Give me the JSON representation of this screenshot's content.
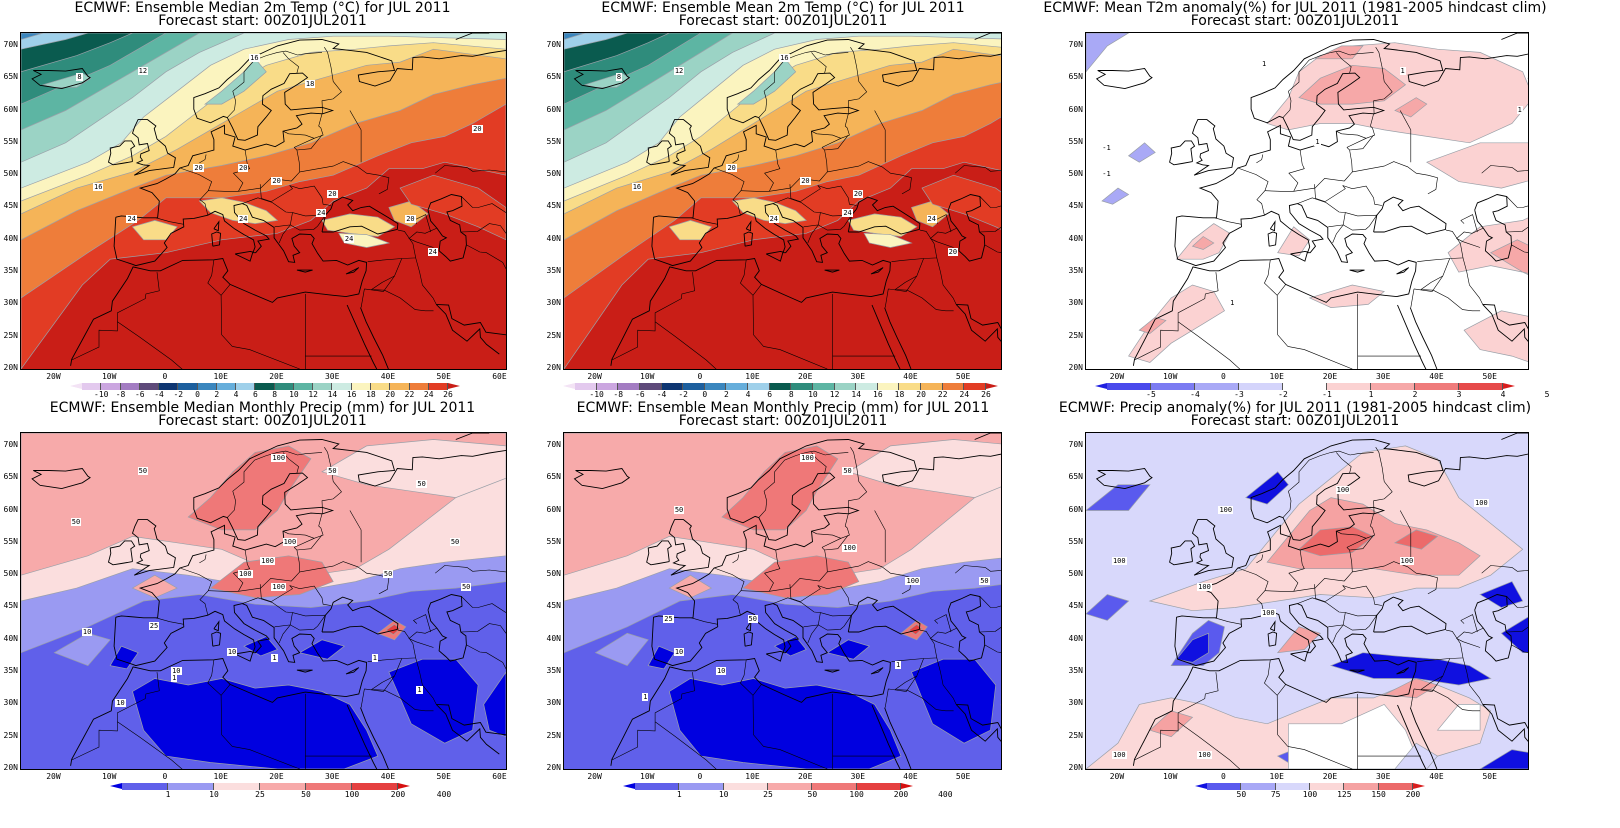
{
  "panels": [
    {
      "id": "median-temp",
      "title_line1": "ECMWF: Ensemble Median 2m Temp (°C) for JUL 2011",
      "title_line2": "Forecast start: 00Z01JUL2011",
      "lat_labels": [
        "70N",
        "65N",
        "60N",
        "55N",
        "50N",
        "45N",
        "40N",
        "35N",
        "30N",
        "25N",
        "20N"
      ],
      "lon_labels": [
        "20W",
        "10W",
        "0",
        "10E",
        "20E",
        "30E",
        "40E",
        "50E",
        "60E"
      ],
      "colorbar": {
        "ticks": [
          "-10",
          "-8",
          "-6",
          "-4",
          "-2",
          "0",
          "2",
          "4",
          "6",
          "8",
          "10",
          "12",
          "14",
          "16",
          "18",
          "20",
          "22",
          "24",
          "26"
        ],
        "colors": [
          "#f3e3f5",
          "#e3c9ee",
          "#cba6e0",
          "#a37cc2",
          "#5e4a7a",
          "#0e3672",
          "#1c5f9e",
          "#3a86be",
          "#66aedb",
          "#9fd0ea",
          "#0a5b4f",
          "#2f8c7c",
          "#5db5a3",
          "#9bd3c5",
          "#cdebe2",
          "#fbf4bf",
          "#f9dc88",
          "#f5b458",
          "#ee7d3a",
          "#e23c24",
          "#c91e17"
        ]
      },
      "contour_labels": [
        "8",
        "12",
        "16",
        "16",
        "18",
        "20",
        "20",
        "20",
        "20",
        "20",
        "24",
        "24",
        "24",
        "24",
        "24",
        "20"
      ]
    },
    {
      "id": "mean-temp",
      "title_line1": "ECMWF: Ensemble Mean 2m Temp (°C) for JUL 2011",
      "title_line2": "Forecast start: 00Z01JUL2011",
      "lat_labels": [
        "70N",
        "65N",
        "60N",
        "55N",
        "50N",
        "45N",
        "40N",
        "35N",
        "30N",
        "25N",
        "20N"
      ],
      "lon_labels": [
        "20W",
        "10W",
        "0",
        "10E",
        "20E",
        "30E",
        "40E",
        "50E"
      ],
      "colorbar": {
        "ticks": [
          "-10",
          "-8",
          "-6",
          "-4",
          "-2",
          "0",
          "2",
          "4",
          "6",
          "8",
          "10",
          "12",
          "14",
          "16",
          "18",
          "20",
          "22",
          "24",
          "26"
        ],
        "colors": [
          "#f3e3f5",
          "#e3c9ee",
          "#cba6e0",
          "#a37cc2",
          "#5e4a7a",
          "#0e3672",
          "#1c5f9e",
          "#3a86be",
          "#66aedb",
          "#9fd0ea",
          "#0a5b4f",
          "#2f8c7c",
          "#5db5a3",
          "#9bd3c5",
          "#cdebe2",
          "#fbf4bf",
          "#f9dc88",
          "#f5b458",
          "#ee7d3a",
          "#e23c24",
          "#c91e17"
        ]
      },
      "contour_labels": [
        "8",
        "12",
        "16",
        "16",
        "20",
        "20",
        "20",
        "24",
        "24",
        "24",
        "20"
      ]
    },
    {
      "id": "t2m-anomaly",
      "title_line1": "ECMWF: Mean T2m anomaly(%) for JUL 2011 (1981-2005 hindcast clim)",
      "title_line2": "Forecast start: 00Z01JUL2011",
      "lat_labels": [
        "70N",
        "65N",
        "60N",
        "55N",
        "50N",
        "45N",
        "40N",
        "35N",
        "30N",
        "25N",
        "20N"
      ],
      "lon_labels": [
        "20W",
        "10W",
        "0",
        "10E",
        "20E",
        "30E",
        "40E",
        "50E"
      ],
      "colorbar": {
        "ticks": [
          "-5",
          "-4",
          "-3",
          "-2",
          "-1",
          "1",
          "2",
          "3",
          "4",
          "5"
        ],
        "colors": [
          "#1f1fe0",
          "#4a4aec",
          "#7b7bf2",
          "#a9a9f6",
          "#d4d4fb",
          "#ffffff",
          "#fbd2d2",
          "#f6a8a8",
          "#ef7b7b",
          "#e64a4a",
          "#d91c1c"
        ]
      },
      "contour_labels": [
        "1",
        "1",
        "1",
        "1",
        "-1",
        "-1",
        "1"
      ]
    },
    {
      "id": "median-precip",
      "title_line1": "ECMWF: Ensemble Median Monthly Precip (mm) for JUL 2011",
      "title_line2": "Forecast start: 00Z01JUL2011",
      "lat_labels": [
        "70N",
        "65N",
        "60N",
        "55N",
        "50N",
        "45N",
        "40N",
        "35N",
        "30N",
        "25N",
        "20N"
      ],
      "lon_labels": [
        "20W",
        "10W",
        "0",
        "10E",
        "20E",
        "30E",
        "40E",
        "50E",
        "60E"
      ],
      "colorbar": {
        "ticks": [
          "1",
          "10",
          "25",
          "50",
          "100",
          "200",
          "400"
        ],
        "colors": [
          "#0000e0",
          "#6060ea",
          "#9a9af2",
          "#fbdede",
          "#f7aaaa",
          "#ef7878",
          "#e54040",
          "#d61010"
        ]
      },
      "contour_labels": [
        "50",
        "50",
        "100",
        "50",
        "50",
        "100",
        "100",
        "100",
        "100",
        "50",
        "50",
        "50",
        "25",
        "10",
        "10",
        "10",
        "10",
        "1",
        "1",
        "1",
        "1"
      ]
    },
    {
      "id": "mean-precip",
      "title_line1": "ECMWF: Ensemble Mean Monthly Precip (mm) for JUL 2011",
      "title_line2": "Forecast start: 00Z01JUL2011",
      "lat_labels": [
        "70N",
        "65N",
        "60N",
        "55N",
        "50N",
        "45N",
        "40N",
        "35N",
        "30N",
        "25N",
        "20N"
      ],
      "lon_labels": [
        "20W",
        "10W",
        "0",
        "10E",
        "20E",
        "30E",
        "40E",
        "50E"
      ],
      "colorbar": {
        "ticks": [
          "1",
          "10",
          "25",
          "50",
          "100",
          "200",
          "400"
        ],
        "colors": [
          "#0000e0",
          "#6060ea",
          "#9a9af2",
          "#fbdede",
          "#f7aaaa",
          "#ef7878",
          "#e54040",
          "#d61010"
        ]
      },
      "contour_labels": [
        "100",
        "50",
        "50",
        "100",
        "100",
        "50",
        "50",
        "25",
        "10",
        "10",
        "1",
        "1"
      ]
    },
    {
      "id": "precip-anomaly",
      "title_line1": "ECMWF: Precip anomaly(%) for JUL 2011 (1981-2005 hindcast clim)",
      "title_line2": "Forecast start: 00Z01JUL2011",
      "lat_labels": [
        "70N",
        "65N",
        "60N",
        "55N",
        "50N",
        "45N",
        "40N",
        "35N",
        "30N",
        "25N",
        "20N"
      ],
      "lon_labels": [
        "20W",
        "10W",
        "0",
        "10E",
        "20E",
        "30E",
        "40E",
        "50E"
      ],
      "colorbar": {
        "ticks": [
          "50",
          "75",
          "100",
          "125",
          "150",
          "200"
        ],
        "colors": [
          "#1010e0",
          "#5a5aee",
          "#a8a8f6",
          "#d8d8fb",
          "#fbd8d8",
          "#f5a2a2",
          "#ec6a6a",
          "#d91c1c"
        ]
      },
      "contour_labels": [
        "100",
        "100",
        "100",
        "100",
        "100",
        "100",
        "100",
        "100",
        "100"
      ]
    }
  ]
}
